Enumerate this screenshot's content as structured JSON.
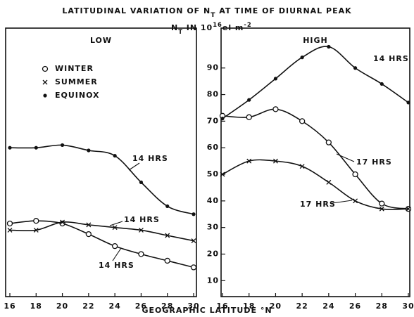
{
  "title": [
    {
      "text": "LATITUDINAL VARIATION OF N"
    },
    {
      "text": "T",
      "sub": true
    },
    {
      "text": " AT TIME OF DIURNAL PEAK"
    }
  ],
  "ylabel": [
    {
      "text": "N"
    },
    {
      "text": "T",
      "sub": true
    },
    {
      "text": " IN 10"
    },
    {
      "text": "16",
      "sup": true
    },
    {
      "text": "el m"
    },
    {
      "text": "-2",
      "sup": true
    }
  ],
  "xlabel": "GEOGRAPHIC LATITUDE °N",
  "legend": [
    {
      "name": "WINTER",
      "marker": "o"
    },
    {
      "name": "SUMMER",
      "marker": "x"
    },
    {
      "name": "EQUINOX",
      "marker": "dot"
    }
  ],
  "chart_data": [
    {
      "type": "line",
      "title": "LOW",
      "x": [
        16,
        18,
        20,
        22,
        24,
        26,
        28,
        30
      ],
      "xlim": [
        16,
        30
      ],
      "xticks": [
        16,
        18,
        20,
        22,
        24,
        26,
        28,
        30
      ],
      "ylim": [
        4,
        105
      ],
      "series": [
        {
          "marker": "o",
          "color": "#111",
          "label": "14 HRS",
          "values": [
            31.5,
            32.5,
            31.5,
            27.5,
            23,
            20,
            17.5,
            15
          ]
        },
        {
          "marker": "x",
          "color": "#111",
          "label": "14 HRS",
          "values": [
            29,
            29,
            32,
            31,
            30,
            29,
            27,
            25
          ]
        },
        {
          "marker": "dot",
          "color": "#111",
          "label": "14 HRS",
          "values": [
            60,
            60,
            61,
            59,
            57,
            47,
            38,
            35
          ]
        }
      ]
    },
    {
      "type": "line",
      "title": "HIGH",
      "x": [
        16,
        18,
        20,
        22,
        24,
        26,
        28,
        30
      ],
      "xlim": [
        16,
        30
      ],
      "xticks": [
        16,
        18,
        20,
        22,
        24,
        26,
        28,
        30
      ],
      "ylim": [
        4,
        105
      ],
      "yticks": [
        10,
        20,
        30,
        40,
        50,
        60,
        70,
        80,
        90
      ],
      "series": [
        {
          "marker": "o",
          "color": "#111",
          "label": "17 HRS",
          "values": [
            72,
            71.5,
            74.5,
            70,
            62,
            50,
            39,
            37
          ]
        },
        {
          "marker": "x",
          "color": "#111",
          "label": "17 HRS",
          "values": [
            50,
            55,
            55,
            53,
            47,
            40,
            37,
            37
          ]
        },
        {
          "marker": "dot",
          "color": "#111",
          "label": "14 HRS",
          "values": [
            71,
            78,
            86,
            94,
            98,
            90,
            84,
            77
          ]
        }
      ]
    }
  ]
}
